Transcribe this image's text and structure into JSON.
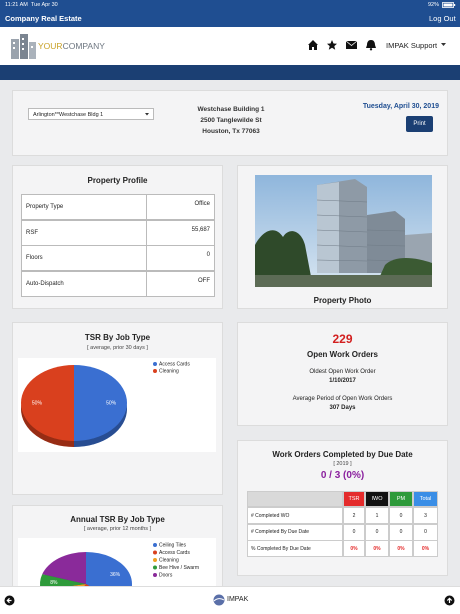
{
  "status_bar": {
    "time": "11:21 AM",
    "date": "Tue Apr 30",
    "battery": "92%"
  },
  "nav": {
    "title": "Company Real Estate",
    "logout": "Log Out"
  },
  "header": {
    "logo_your": "YOUR",
    "logo_company": "COMPANY",
    "user_menu": "IMPAK Support"
  },
  "property_bar": {
    "selected_property": "Arlington**Westchase Bldg 1",
    "address": [
      "Westchase Building 1",
      "2500 Tanglewilde St",
      "Houston, Tx 77063"
    ],
    "date": "Tuesday, April 30, 2019",
    "print_button": "Print"
  },
  "property_profile": {
    "title": "Property Profile",
    "rows": [
      [
        "Property Type",
        "Office"
      ],
      [
        "RSF",
        "55,687"
      ],
      [
        "Floors",
        "0"
      ],
      [
        "Auto-Dispatch",
        "OFF"
      ]
    ]
  },
  "property_photo": {
    "caption": "Property Photo"
  },
  "tsr_by_job_type": {
    "title": "TSR By Job Type",
    "subtitle": "[ average, prior 30 days ]",
    "slices": [
      {
        "name": "Access Cards",
        "color": "#3a6fd1",
        "value": 50,
        "label": "50%"
      },
      {
        "name": "Cleaning",
        "color": "#d9401e",
        "value": 50,
        "label": "50%"
      }
    ]
  },
  "open_work_orders": {
    "count": "229",
    "label": "Open Work Orders",
    "oldest_label": "Oldest Open Work Order",
    "oldest_date": "1/10/2017",
    "average_label": "Average Period of Open Work Orders",
    "average_value": "307 Days"
  },
  "completed_by_due_date": {
    "title": "Work Orders Completed by Due Date",
    "year": "[ 2019 ]",
    "summary": "0 / 3 (0%)",
    "columns": [
      "TSR",
      "IWO",
      "PM",
      "Total"
    ],
    "rows": [
      [
        "# Completed WO",
        "2",
        "1",
        "0",
        "3"
      ],
      [
        "# Completed By Due Date",
        "0",
        "0",
        "0",
        "0"
      ],
      [
        "% Completed By Due Date",
        "0%",
        "0%",
        "0%",
        "0%"
      ]
    ]
  },
  "annual_tsr": {
    "title": "Annual TSR By Job Type",
    "subtitle": "[ average, prior 12 months ]",
    "slices": [
      {
        "name": "Ceiling Tiles",
        "color": "#3a6fd1",
        "value": 36,
        "label": "36%"
      },
      {
        "name": "Access Cards",
        "color": "#d9401e",
        "value": 22
      },
      {
        "name": "Cleaning",
        "color": "#f0a020",
        "value": 14
      },
      {
        "name": "Bee Hive / Swarm",
        "color": "#2e9a3a",
        "value": 8,
        "label": "8%"
      },
      {
        "name": "Doors",
        "color": "#8a2a9a",
        "value": 20
      }
    ]
  },
  "bottom_bar": {
    "app_name": "IMPAK"
  }
}
